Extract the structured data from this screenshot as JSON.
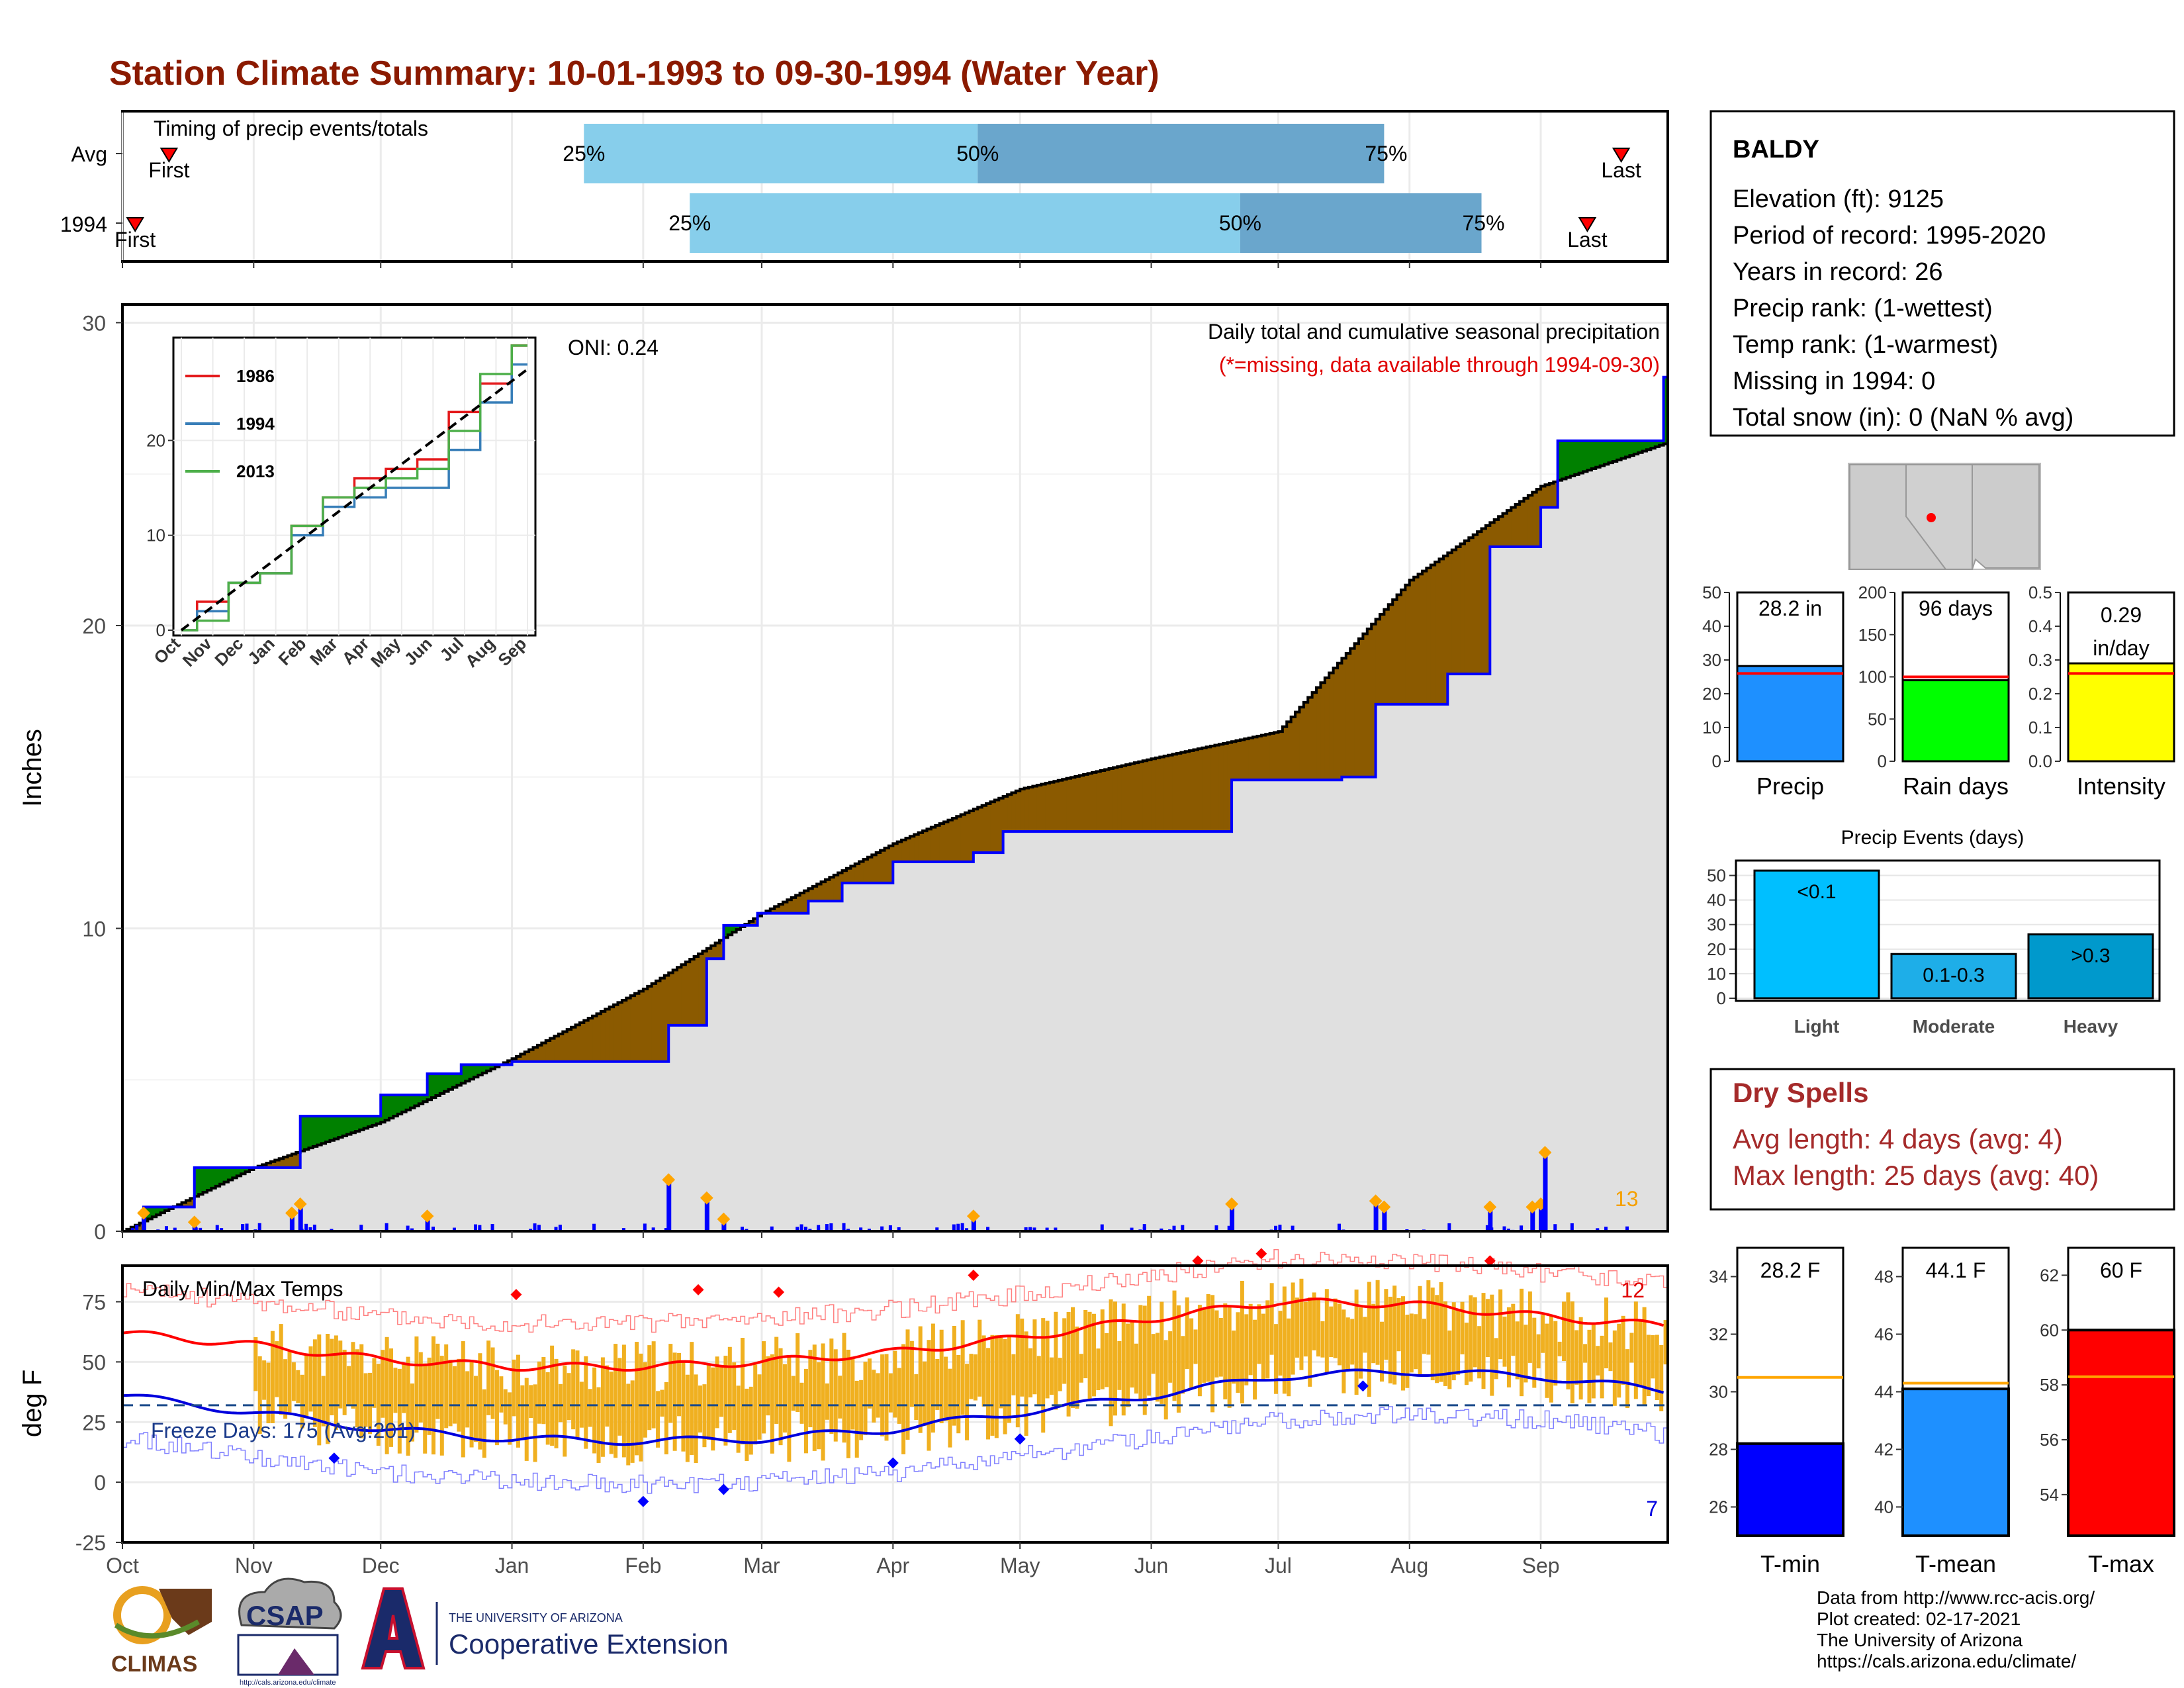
{
  "title": "Station Climate Summary: 10-01-1993 to 09-30-1994 (Water Year)",
  "colors": {
    "title": "#8b1a00",
    "bar_light": "#87ceeb",
    "bar_dark": "#6aa6cc",
    "surplus": "#008000",
    "deficit": "#8b5a00",
    "area": "#e0e0e0",
    "obs_line": "#0000ff",
    "avg_line": "#000000",
    "precip_bar": "#1e90ff",
    "rain_bar": "#00ff00",
    "intensity_bar": "#ffff00",
    "light_bar": "#00bfff",
    "moderate_bar": "#1eaee8",
    "heavy_bar": "#0099cc",
    "tmin_bar": "#0000ff",
    "tmean_bar": "#1e90ff",
    "tmax_bar": "#ff0000",
    "temp_range": "#f0b020",
    "dry_title": "#a52a2a"
  },
  "timing": {
    "title": "Timing of precip events/totals",
    "rows": [
      {
        "label": "Avg",
        "first": "First",
        "last": "Last",
        "p25": "25%",
        "p50": "50%",
        "p75": "75%"
      },
      {
        "label": "1994",
        "first": "First",
        "last": "Last",
        "p25": "25%",
        "p50": "50%",
        "p75": "75%"
      }
    ]
  },
  "station": {
    "name": "BALDY",
    "lines": [
      "Elevation (ft): 9125",
      "Period of record: 1995-2020",
      "Years in record: 26",
      "Precip rank:  (1-wettest)",
      "Temp rank:  (1-warmest)",
      "Missing in 1994: 0",
      "Total snow (in): 0 (NaN % avg)"
    ]
  },
  "precip_panel": {
    "y_label": "Inches",
    "title": "Daily total and cumulative seasonal precipitation",
    "subtitle": "(*=missing, data available through 1994-09-30)",
    "oni": "ONI: 0.24",
    "count_label": "13"
  },
  "inset": {
    "legend": [
      "1986",
      "1994",
      "2013"
    ],
    "months": [
      "Oct",
      "Nov",
      "Dec",
      "Jan",
      "Feb",
      "Mar",
      "Apr",
      "May",
      "Jun",
      "Jul",
      "Aug",
      "Sep"
    ],
    "yticks": [
      "0",
      "10",
      "20"
    ]
  },
  "temp_panel": {
    "title": "Daily Min/Max Temps",
    "y_label": "deg F",
    "freeze": "Freeze Days: 175 (Avg:201)",
    "hot_count": "12",
    "cold_count": "7",
    "yticks": [
      "75",
      "50",
      "25",
      "0",
      "-25"
    ]
  },
  "months": [
    "Oct",
    "Nov",
    "Dec",
    "Jan",
    "Feb",
    "Mar",
    "Apr",
    "May",
    "Jun",
    "Jul",
    "Aug",
    "Sep"
  ],
  "summary_bars": [
    {
      "label": "Precip",
      "value_label": "28.2 in",
      "yticks": [
        "50",
        "40",
        "30",
        "20",
        "10",
        "0"
      ]
    },
    {
      "label": "Rain days",
      "value_label": "96 days",
      "yticks": [
        "200",
        "150",
        "100",
        "50",
        "0"
      ]
    },
    {
      "label": "Intensity",
      "value_label": "0.29",
      "value_label2": "in/day",
      "yticks": [
        "0.5",
        "0.4",
        "0.3",
        "0.2",
        "0.1",
        "0.0"
      ]
    }
  ],
  "precip_events": {
    "title": "Precip Events (days)",
    "yticks": [
      "50",
      "40",
      "30",
      "20",
      "10",
      "0"
    ],
    "bars": [
      {
        "label": "Light",
        "bar_label": "<0.1"
      },
      {
        "label": "Moderate",
        "bar_label": "0.1-0.3"
      },
      {
        "label": "Heavy",
        "bar_label": ">0.3"
      }
    ]
  },
  "dry_spells": {
    "title": "Dry Spells",
    "avg": "Avg length: 4 days (avg: 4)",
    "max": "Max length: 25 days (avg: 40)"
  },
  "temp_bars": [
    {
      "label": "T-min",
      "value_label": "28.2 F",
      "yticks": [
        "34",
        "32",
        "30",
        "28",
        "26"
      ]
    },
    {
      "label": "T-mean",
      "value_label": "44.1 F",
      "yticks": [
        "48",
        "46",
        "44",
        "42",
        "40"
      ]
    },
    {
      "label": "T-max",
      "value_label": "60 F",
      "yticks": [
        "62",
        "60",
        "58",
        "56",
        "54"
      ]
    }
  ],
  "logos": {
    "climas": "CLIMAS",
    "csap": "CSAP",
    "csap_url": "http://cals.arizona.edu/climate",
    "ua_small": "THE UNIVERSITY OF ARIZONA",
    "ua_big": "Cooperative Extension"
  },
  "credits": [
    "Data from http://www.rcc-acis.org/",
    "Plot created: 02-17-2021",
    "The University of Arizona",
    "https://cals.arizona.edu/climate/"
  ],
  "chart_data": {
    "type": "area",
    "timing": {
      "Avg": {
        "first": "1993-10-12",
        "p25": "1994-01-18",
        "p50": "1994-04-21",
        "p75": "1994-07-26",
        "last": "1994-09-20"
      },
      "1994": {
        "first": "1993-10-04",
        "p25": "1994-02-12",
        "p50": "1994-06-22",
        "p75": "1994-08-18",
        "last": "1994-09-12"
      }
    },
    "cumulative_observed": {
      "x": [
        "1993-10-01",
        "1993-10-06",
        "1993-10-18",
        "1993-11-10",
        "1993-11-12",
        "1993-12-01",
        "1993-12-12",
        "1993-12-20",
        "1994-01-01",
        "1994-01-20",
        "1994-02-07",
        "1994-02-16",
        "1994-02-20",
        "1994-02-28",
        "1994-03-12",
        "1994-03-20",
        "1994-04-01",
        "1994-04-20",
        "1994-04-27",
        "1994-06-01",
        "1994-06-20",
        "1994-07-16",
        "1994-07-24",
        "1994-08-10",
        "1994-08-20",
        "1994-09-01",
        "1994-09-05",
        "1994-09-30"
      ],
      "y": [
        0.0,
        0.8,
        2.1,
        2.1,
        3.8,
        4.5,
        5.2,
        5.5,
        5.6,
        5.6,
        6.8,
        9.0,
        10.1,
        10.5,
        10.9,
        11.5,
        12.2,
        12.5,
        13.2,
        13.2,
        14.9,
        15.0,
        17.4,
        18.4,
        22.6,
        23.9,
        26.1,
        28.2
      ]
    },
    "cumulative_average": {
      "x": [
        "1993-10-01",
        "1993-11-01",
        "1993-12-01",
        "1994-01-01",
        "1994-02-01",
        "1994-03-01",
        "1994-04-01",
        "1994-05-01",
        "1994-06-01",
        "1994-07-01",
        "1994-08-01",
        "1994-09-01",
        "1994-09-30"
      ],
      "y": [
        0.0,
        2.1,
        3.6,
        5.7,
        8.0,
        10.5,
        12.8,
        14.6,
        15.6,
        16.5,
        21.5,
        24.6,
        26.0
      ]
    },
    "daily_precip": {
      "x": [
        "1993-10-06",
        "1993-10-18",
        "1993-11-10",
        "1993-11-12",
        "1993-12-12",
        "1994-02-07",
        "1994-02-16",
        "1994-02-20",
        "1994-04-20",
        "1994-06-20",
        "1994-07-24",
        "1994-07-26",
        "1994-08-20",
        "1994-08-30",
        "1994-09-01",
        "1994-09-02"
      ],
      "y": [
        0.6,
        0.3,
        0.6,
        0.9,
        0.5,
        1.7,
        1.1,
        0.4,
        0.5,
        0.9,
        1.0,
        0.8,
        0.8,
        0.8,
        0.9,
        2.6
      ]
    },
    "inset_series": [
      {
        "name": "1986",
        "x": [
          "Oct",
          "Nov",
          "Dec",
          "Jan",
          "Feb",
          "Mar",
          "Apr",
          "May",
          "Jun",
          "Jul",
          "Aug",
          "Sep"
        ],
        "y": [
          0,
          3,
          5,
          6,
          11,
          14,
          16,
          17,
          18,
          23,
          26,
          30
        ]
      },
      {
        "name": "1994",
        "x": [
          "Oct",
          "Nov",
          "Dec",
          "Jan",
          "Feb",
          "Mar",
          "Apr",
          "May",
          "Jun",
          "Jul",
          "Aug",
          "Sep"
        ],
        "y": [
          0,
          2,
          5,
          6,
          10,
          13,
          14,
          15,
          15,
          19,
          24,
          28
        ]
      },
      {
        "name": "2013",
        "x": [
          "Oct",
          "Nov",
          "Dec",
          "Jan",
          "Feb",
          "Mar",
          "Apr",
          "May",
          "Jun",
          "Jul",
          "Aug",
          "Sep"
        ],
        "y": [
          0,
          1,
          5,
          6,
          11,
          14,
          15,
          16,
          17,
          21,
          27,
          30
        ]
      }
    ],
    "inset_ylim": [
      0,
      30
    ],
    "temps_avg_max": {
      "x": [
        "1993-10-01",
        "1993-11-01",
        "1993-12-01",
        "1994-01-01",
        "1994-02-01",
        "1994-03-01",
        "1994-04-01",
        "1994-05-01",
        "1994-06-01",
        "1994-07-01",
        "1994-08-01",
        "1994-09-01",
        "1994-09-30"
      ],
      "y": [
        62,
        57,
        51,
        48,
        48,
        50,
        54,
        60,
        68,
        75,
        74,
        69,
        65
      ]
    },
    "temps_avg_min": {
      "x": [
        "1993-10-01",
        "1993-11-01",
        "1993-12-01",
        "1994-01-01",
        "1994-02-01",
        "1994-03-01",
        "1994-04-01",
        "1994-05-01",
        "1994-06-01",
        "1994-07-01",
        "1994-08-01",
        "1994-09-01",
        "1994-09-30"
      ],
      "y": [
        36,
        29,
        22,
        18,
        17,
        18,
        22,
        29,
        36,
        44,
        46,
        44,
        38
      ]
    },
    "freeze_line": 32,
    "temp_ylim": [
      -25,
      90
    ],
    "precip_ylim": [
      0,
      30
    ],
    "summary_values": {
      "precip_in": 28.2,
      "precip_avg_in": 26.0,
      "rain_days": 96,
      "rain_days_avg": 100,
      "intensity": 0.29,
      "intensity_avg": 0.26
    },
    "precip_ylims": {
      "precip": [
        0,
        50
      ],
      "rain_days": [
        0,
        200
      ],
      "intensity": [
        0,
        0.5
      ]
    },
    "precip_events_values": {
      "Light": 52,
      "Moderate": 18,
      "Heavy": 26
    },
    "temp_values": {
      "tmin": 28.2,
      "tmin_avg": 30.5,
      "tmean": 44.1,
      "tmean_avg": 44.3,
      "tmax": 60,
      "tmax_avg": 58.3
    },
    "temp_ylims": {
      "tmin": [
        25,
        35
      ],
      "tmean": [
        39,
        49
      ],
      "tmax": [
        52.5,
        63
      ]
    }
  }
}
